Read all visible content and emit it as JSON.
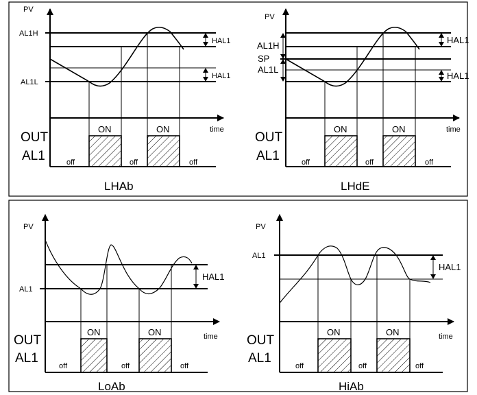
{
  "diagrams": {
    "lhab": {
      "pv": "PV",
      "al1h": "AL1H",
      "al1l": "AL1L",
      "hal_top": "HAL1",
      "hal_bot": "HAL1",
      "time": "time",
      "out": "OUT",
      "al1": "AL1",
      "on1": "ON",
      "on2": "ON",
      "off1": "off",
      "off2": "off",
      "off3": "off",
      "title": "LHAb"
    },
    "lhde": {
      "pv": "PV",
      "al1h": "AL1H",
      "sp": "SP",
      "al1l": "AL1L",
      "hal_top": "HAL1",
      "hal_bot": "HAL1",
      "time": "time",
      "out": "OUT",
      "al1": "AL1",
      "on1": "ON",
      "on2": "ON",
      "off1": "off",
      "off2": "off",
      "off3": "off",
      "title": "LHdE"
    },
    "loab": {
      "pv": "PV",
      "al1": "AL1",
      "hal": "HAL1",
      "time": "time",
      "out": "OUT",
      "out_al1": "AL1",
      "on1": "ON",
      "on2": "ON",
      "off1": "off",
      "off2": "off",
      "off3": "off",
      "title": "LoAb"
    },
    "hiab": {
      "pv": "PV",
      "al1": "AL1",
      "hal": "HAL1",
      "time": "time",
      "out": "OUT",
      "out_al1": "AL1",
      "on1": "ON",
      "on2": "ON",
      "off1": "off",
      "off2": "off",
      "off3": "off",
      "title": "HiAb"
    }
  }
}
